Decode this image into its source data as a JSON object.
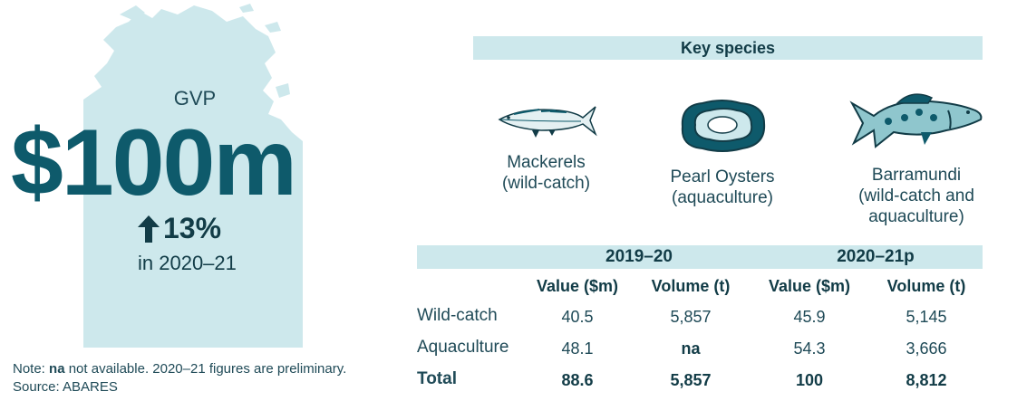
{
  "gvp": {
    "label": "GVP",
    "value": "$100m",
    "change": "13%",
    "period": "in 2020–21"
  },
  "note": {
    "prefix": "Note: ",
    "na": "na",
    "text": " not available. 2020–21 figures are preliminary.",
    "source": "Source: ABARES"
  },
  "key_species": {
    "header": "Key species",
    "items": [
      {
        "line1": "Mackerels",
        "line2": "(wild-catch)",
        "line3": "",
        "icon": "mackerel-icon"
      },
      {
        "line1": "Pearl Oysters",
        "line2": "(aquaculture)",
        "line3": "",
        "icon": "pearl-oyster-icon"
      },
      {
        "line1": "Barramundi",
        "line2": "(wild-catch and",
        "line3": "aquaculture)",
        "icon": "barramundi-icon"
      }
    ]
  },
  "table": {
    "periods": [
      "2019–20",
      "2020–21p"
    ],
    "columns": [
      "Value ($m)",
      "Volume (t)",
      "Value ($m)",
      "Volume (t)"
    ],
    "rows": [
      {
        "label": "Wild-catch",
        "values": [
          "40.5",
          "5,857",
          "45.9",
          "5,145"
        ]
      },
      {
        "label": "Aquaculture",
        "values": [
          "48.1",
          "na",
          "54.3",
          "3,666"
        ]
      },
      {
        "label": "Total",
        "values": [
          "88.6",
          "5,857",
          "100",
          "8,812"
        ]
      }
    ]
  },
  "colors": {
    "map_fill": "#cde8ec",
    "accent": "#0e5a6b",
    "text": "#1f4a57"
  }
}
